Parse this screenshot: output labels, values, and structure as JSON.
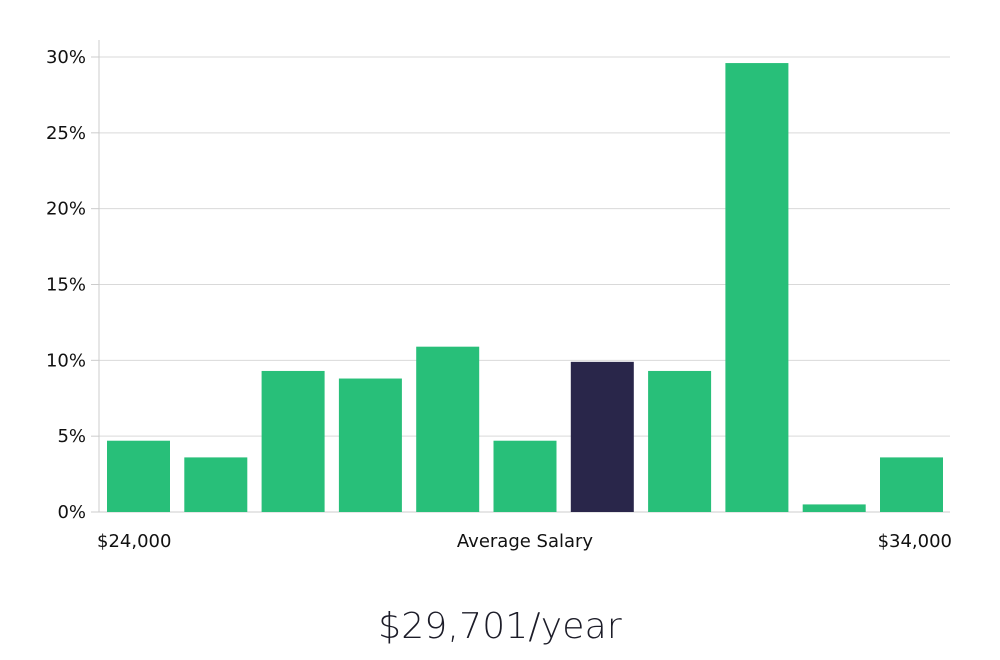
{
  "chart_data": {
    "type": "bar",
    "title": "",
    "xlabel": "Average Salary",
    "x_start_label": "$24,000",
    "x_end_label": "$34,000",
    "ylabel": "",
    "ylim": [
      0,
      30
    ],
    "yticks": [
      0,
      5,
      10,
      15,
      20,
      25,
      30
    ],
    "ytick_labels": [
      "0%",
      "5%",
      "10%",
      "15%",
      "20%",
      "25%",
      "30%"
    ],
    "grid": true,
    "values": [
      4.7,
      3.6,
      9.3,
      8.8,
      10.9,
      4.7,
      9.9,
      9.3,
      29.6,
      0.5,
      3.6
    ],
    "highlight_index": 6,
    "colors": {
      "bar": "#28bf79",
      "highlight": "#29264a",
      "grid": "#d9d9d9",
      "axis": "#cccccc"
    }
  },
  "summary": {
    "salary": "$29,701/year"
  }
}
